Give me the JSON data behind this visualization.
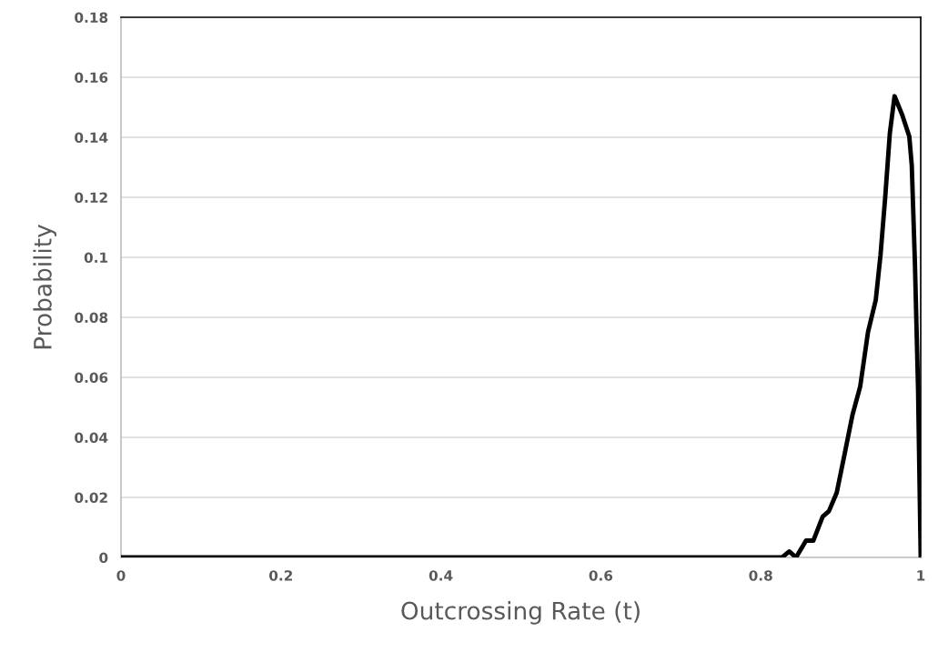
{
  "chart_data": {
    "type": "line",
    "xlabel": "Outcrossing Rate (t)",
    "ylabel": "Probability",
    "series": [
      {
        "color": "#000000",
        "x": [
          0,
          0.8265,
          0.8356,
          0.8441,
          0.8566,
          0.8657,
          0.8774,
          0.8852,
          0.895,
          0.9048,
          0.9145,
          0.9243,
          0.9341,
          0.9438,
          0.9497,
          0.9556,
          0.9614,
          0.9673,
          0.9771,
          0.9857,
          0.9888,
          0.9927,
          0.9967,
          1.0
        ],
        "values": [
          0,
          0,
          0.002,
          0,
          0.0056,
          0.0056,
          0.0136,
          0.0154,
          0.0216,
          0.0344,
          0.0473,
          0.0569,
          0.0751,
          0.0858,
          0.1007,
          0.12,
          0.1414,
          0.1537,
          0.1473,
          0.1403,
          0.1307,
          0.0986,
          0.0558,
          0
        ]
      }
    ],
    "xlim": [
      0,
      1
    ],
    "xticks": [
      0,
      0.2,
      0.4,
      0.6,
      0.8,
      1
    ],
    "ylim": [
      0,
      0.18
    ],
    "yticks": [
      0,
      0.02,
      0.04,
      0.06,
      0.08,
      0.1,
      0.12,
      0.14,
      0.16,
      0.18
    ],
    "grid": "y",
    "marker": "none",
    "line_style": "solid"
  }
}
